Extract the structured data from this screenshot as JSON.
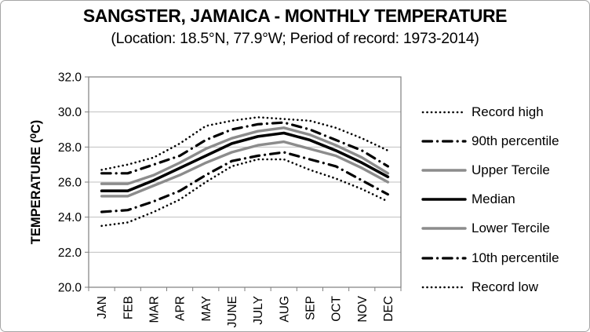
{
  "chart_data": {
    "type": "line",
    "title": "SANGSTER, JAMAICA - MONTHLY TEMPERATURE",
    "subtitle": "(Location: 18.5°N, 77.9°W; Period of record: 1973-2014)",
    "xlabel": "",
    "ylabel": "TEMPERATURE (⁰C)",
    "categories": [
      "JAN",
      "FEB",
      "MAR",
      "APR",
      "MAY",
      "JUNE",
      "JULY",
      "AUG",
      "SEP",
      "OCT",
      "NOV",
      "DEC"
    ],
    "ylim": [
      20.0,
      32.0
    ],
    "ytick_step": 2.0,
    "yticks": [
      "20.0",
      "22.0",
      "24.0",
      "26.0",
      "28.0",
      "30.0",
      "32.0"
    ],
    "grid": "horizontal",
    "legend_position": "right",
    "series": [
      {
        "name": "Record high",
        "style": "dotted",
        "color": "#000000",
        "values": [
          26.7,
          27.0,
          27.4,
          28.2,
          29.2,
          29.5,
          29.7,
          29.6,
          29.5,
          29.1,
          28.5,
          27.8
        ]
      },
      {
        "name": "90th percentile",
        "style": "dash-dot",
        "color": "#000000",
        "values": [
          26.5,
          26.5,
          27.0,
          27.5,
          28.4,
          29.0,
          29.3,
          29.4,
          29.0,
          28.4,
          27.8,
          26.9
        ]
      },
      {
        "name": "Upper Tercile",
        "style": "solid",
        "color": "#8c8c8c",
        "values": [
          25.9,
          25.9,
          26.4,
          27.1,
          27.9,
          28.5,
          28.9,
          29.1,
          28.7,
          28.1,
          27.4,
          26.5
        ]
      },
      {
        "name": "Median",
        "style": "solid",
        "color": "#000000",
        "values": [
          25.5,
          25.5,
          26.1,
          26.8,
          27.5,
          28.2,
          28.6,
          28.8,
          28.4,
          27.8,
          27.1,
          26.3
        ]
      },
      {
        "name": "Lower Tercile",
        "style": "solid",
        "color": "#8c8c8c",
        "values": [
          25.2,
          25.2,
          25.8,
          26.4,
          27.1,
          27.7,
          28.1,
          28.3,
          27.9,
          27.5,
          26.8,
          26.0
        ]
      },
      {
        "name": "10th percentile",
        "style": "dash-dot",
        "color": "#000000",
        "values": [
          24.3,
          24.4,
          24.9,
          25.5,
          26.4,
          27.2,
          27.5,
          27.7,
          27.3,
          26.9,
          26.1,
          25.3
        ]
      },
      {
        "name": "Record low",
        "style": "dotted",
        "color": "#000000",
        "values": [
          23.5,
          23.7,
          24.3,
          25.0,
          26.0,
          26.9,
          27.3,
          27.3,
          26.7,
          26.2,
          25.6,
          24.9
        ]
      }
    ],
    "colors": {
      "gridline": "#bfbfbf",
      "plot_border": "#7f7f7f",
      "frame_border": "#a6a6a6",
      "text": "#000000",
      "background": "#ffffff",
      "gray_series": "#8c8c8c",
      "black_series": "#000000"
    }
  }
}
